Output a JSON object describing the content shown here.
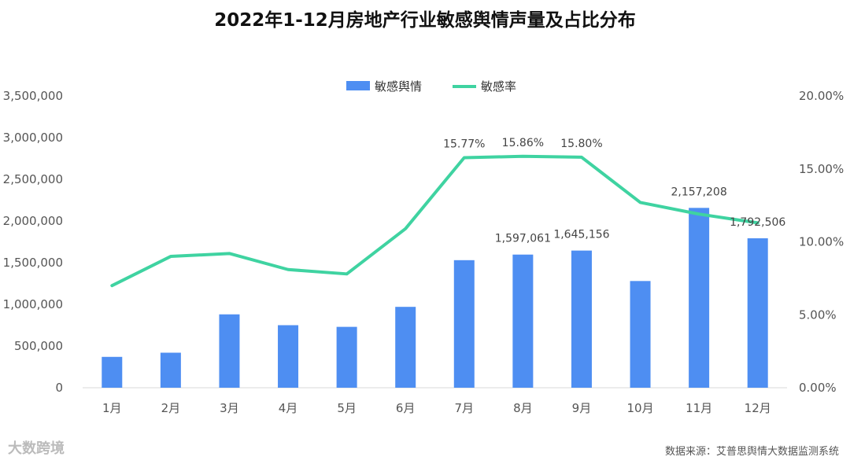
{
  "chart_data": {
    "type": "bar+line",
    "title": "2022年1-12月房地产行业敏感舆情声量及占比分布",
    "categories": [
      "1月",
      "2月",
      "3月",
      "4月",
      "5月",
      "6月",
      "7月",
      "8月",
      "9月",
      "10月",
      "11月",
      "12月"
    ],
    "series": [
      {
        "name": "敏感舆情",
        "type": "bar",
        "axis": "left",
        "color": "#4e8ef2",
        "values": [
          370000,
          420000,
          880000,
          750000,
          730000,
          970000,
          1530000,
          1597061,
          1645156,
          1280000,
          2157208,
          1792506
        ]
      },
      {
        "name": "敏感率",
        "type": "line",
        "axis": "right",
        "color": "#3fd3a1",
        "values": [
          7.0,
          9.0,
          9.2,
          8.1,
          7.8,
          10.9,
          15.77,
          15.86,
          15.8,
          12.7,
          11.9,
          11.3
        ]
      }
    ],
    "left_axis": {
      "ylim": [
        0,
        3500000
      ],
      "ticks": [
        "0",
        "500,000",
        "1,000,000",
        "1,500,000",
        "2,000,000",
        "2,500,000",
        "3,000,000",
        "3,500,000"
      ]
    },
    "right_axis": {
      "ylim": [
        0,
        20
      ],
      "ticks": [
        "0.00%",
        "5.00%",
        "10.00%",
        "15.00%",
        "20.00%"
      ]
    },
    "bar_labels": [
      {
        "index": 7,
        "text": "1,597,061"
      },
      {
        "index": 8,
        "text": "1,645,156"
      },
      {
        "index": 10,
        "text": "2,157,208"
      },
      {
        "index": 11,
        "text": "1,792,506"
      }
    ],
    "line_labels": [
      {
        "index": 6,
        "text": "15.77%"
      },
      {
        "index": 7,
        "text": "15.86%"
      },
      {
        "index": 8,
        "text": "15.80%"
      }
    ],
    "legend_position": "top-center",
    "grid": false
  },
  "footer": {
    "source": "数据来源：艾普思舆情大数据监测系统",
    "brand": "大数跨境"
  }
}
